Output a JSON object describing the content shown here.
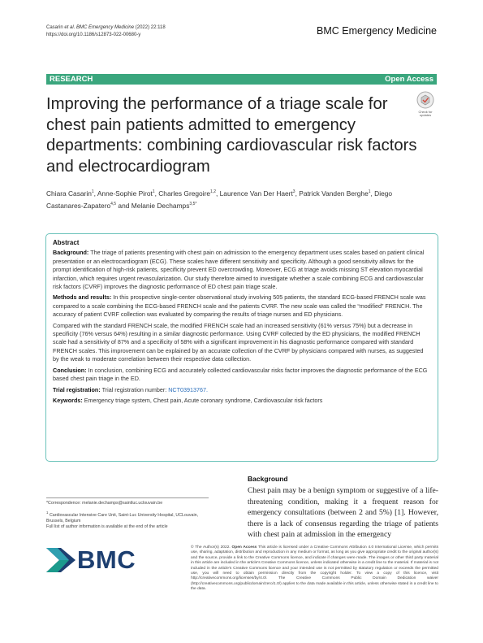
{
  "header": {
    "citation_authors": "Casarin",
    "citation_etal": "et al.",
    "citation_journal": "BMC Emergency Medicine",
    "citation_issue": "(2022) 22:118",
    "doi": "https://doi.org/10.1186/s12873-022-00680-y",
    "journal": "BMC Emergency Medicine"
  },
  "banner": {
    "type": "RESEARCH",
    "access": "Open Access"
  },
  "check_updates": "Check for updates",
  "title": "Improving the performance of a triage scale for chest pain patients admitted to emergency departments: combining cardiovascular risk factors and electrocardiogram",
  "authors": [
    {
      "text": "Chiara Casarin",
      "sup": "1"
    },
    {
      "text": ", Anne-Sophie Pirot",
      "sup": "1"
    },
    {
      "text": ", Charles Gregoire",
      "sup": "1,2"
    },
    {
      "text": ", Laurence Van Der Haert",
      "sup": "3"
    },
    {
      "text": ", Patrick Vanden Berghe",
      "sup": "1"
    },
    {
      "text": ", Diego Castanares-Zapatero",
      "sup": "4,5"
    },
    {
      "text": " and Melanie Dechamps",
      "sup": "3,5*"
    }
  ],
  "abstract": {
    "heading": "Abstract",
    "sections": [
      {
        "label": "Background:",
        "text": "The triage of patients presenting with chest pain on admission to the emergency department uses scales based on patient clinical presentation or an electrocardiogram (ECG). These scales have different sensitivity and specificity. Although a good sensitivity allows for the prompt identification of high-risk patients, specificity prevent ED overcrowding. Moreover, ECG at triage avoids missing ST elevation myocardial infarction, which requires urgent revascularization. Our study therefore aimed to investigate whether a scale combining ECG and cardiovascular risk factors (CVRF) improves the diagnostic performance of ED chest pain triage scale."
      },
      {
        "label": "Methods and results:",
        "text": "In this prospective single-center observational study involving 505 patients, the standard ECG-based FRENCH scale was compared to a scale combining the ECG-based FRENCH scale and the patients CVRF. The new scale was called the “modified” FRENCH. The accuracy of patient CVRF collection was evaluated by comparing the results of triage nurses and ED physicians."
      },
      {
        "text": "Compared with the standard FRENCH scale, the modified FRENCH scale had an increased sensitivity (61% versus 75%) but a decrease in specificity (76% versus 64%) resulting in a similar diagnostic performance. Using CVRF collected by the ED physicians, the modified FRENCH scale had a sensitivity of 87% and a specificity of 58% with a significant improvement in his diagnostic performance compared with standard FRENCH scales. This improvement can be explained by an accurate collection of the CVRF by physicians compared with nurses, as suggested by the weak to moderate correlation between their respective data collection."
      },
      {
        "label": "Conclusion:",
        "text": "In conclusion, combining ECG and accurately collected cardiovascular risks factor improves the diagnostic performance of the ECG based chest pain triage in the ED."
      },
      {
        "label": "Trial registration:",
        "text": "Trial registration number:",
        "link": "NCT03913767."
      }
    ],
    "keywords_label": "Keywords:",
    "keywords": "Emergency triage system, Chest pain, Acute coronary syndrome, Cardiovascular risk factors"
  },
  "footnotes": {
    "correspondence": "*Correspondence: melanie.dechamps@saintluc.uclouvain.be",
    "affiliation_number": "1",
    "affiliation": "Cardiovascular Intensive Care Unit, Saint-Luc University Hospital, UCLouvain, Brussels, Belgium",
    "more": "Full list of author information is available at the end of the article"
  },
  "body": {
    "heading": "Background",
    "text": "Chest pain may be a benign symptom or suggestive of a life-threatening condition, making it a frequent reason for emergency consultations (between 2 and 5%) [1]. However, there is a lack of consensus regarding the triage of patients with chest pain at admission in the emergency"
  },
  "logo": "BMC",
  "license": {
    "copyright": "© The Author(s) 2022.",
    "label": "Open Access",
    "text": "This article is licensed under a Creative Commons Attribution 4.0 International License, which permits use, sharing, adaptation, distribution and reproduction in any medium or format, as long as you give appropriate credit to the original author(s) and the source, provide a link to the Creative Commons licence, and indicate if changes were made. The images or other third party material in this article are included in the article's Creative Commons licence, unless indicated otherwise in a credit line to the material. If material is not included in the article's Creative Commons licence and your intended use is not permitted by statutory regulation or exceeds the permitted use, you will need to obtain permission directly from the copyright holder. To view a copy of this licence, visit http://creativecommons.org/licenses/by/4.0/. The Creative Commons Public Domain Dedication waiver (http://creativecommons.org/publicdomain/zero/1.0/) applies to the data made available in this article, unless otherwise stated in a credit line to the data."
  }
}
